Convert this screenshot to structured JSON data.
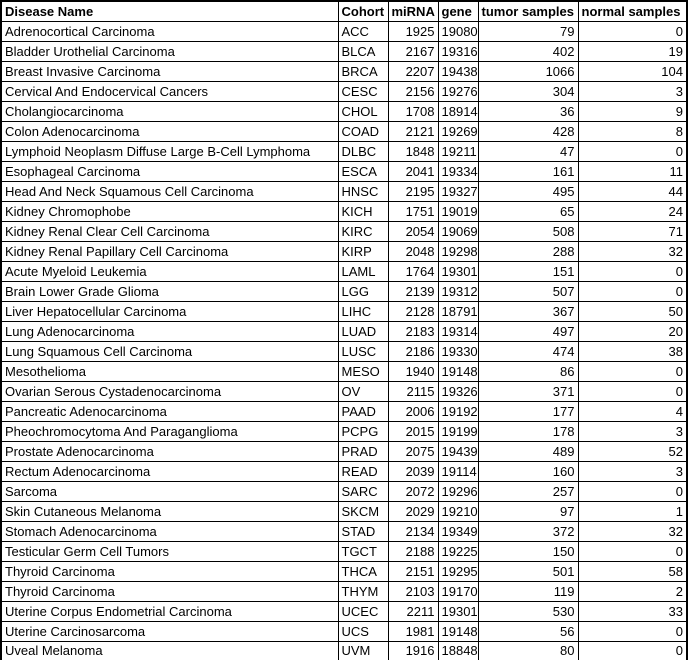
{
  "colors": {
    "background": "#ffffff",
    "gridline": "#000000",
    "text": "#000000"
  },
  "table": {
    "columns": [
      {
        "key": "disease",
        "label": "Disease Name",
        "align": "left"
      },
      {
        "key": "cohort",
        "label": "Cohort",
        "align": "left"
      },
      {
        "key": "mirna",
        "label": "miRNA",
        "align": "right"
      },
      {
        "key": "gene",
        "label": "gene",
        "align": "right"
      },
      {
        "key": "tumor",
        "label": "tumor samples",
        "align": "right"
      },
      {
        "key": "normal",
        "label": "normal samples",
        "align": "right"
      }
    ],
    "rows": [
      [
        "Adrenocortical Carcinoma",
        "ACC",
        1925,
        19080,
        79,
        0
      ],
      [
        "Bladder Urothelial Carcinoma",
        "BLCA",
        2167,
        19316,
        402,
        19
      ],
      [
        "Breast Invasive Carcinoma",
        "BRCA",
        2207,
        19438,
        1066,
        104
      ],
      [
        "Cervical And Endocervical Cancers",
        "CESC",
        2156,
        19276,
        304,
        3
      ],
      [
        "Cholangiocarcinoma",
        "CHOL",
        1708,
        18914,
        36,
        9
      ],
      [
        "Colon Adenocarcinoma",
        "COAD",
        2121,
        19269,
        428,
        8
      ],
      [
        "Lymphoid Neoplasm Diffuse Large B-Cell Lymphoma",
        "DLBC",
        1848,
        19211,
        47,
        0
      ],
      [
        "Esophageal Carcinoma",
        "ESCA",
        2041,
        19334,
        161,
        11
      ],
      [
        "Head And Neck Squamous Cell Carcinoma",
        "HNSC",
        2195,
        19327,
        495,
        44
      ],
      [
        "Kidney Chromophobe",
        "KICH",
        1751,
        19019,
        65,
        24
      ],
      [
        "Kidney Renal Clear Cell Carcinoma",
        "KIRC",
        2054,
        19069,
        508,
        71
      ],
      [
        "Kidney Renal Papillary Cell Carcinoma",
        "KIRP",
        2048,
        19298,
        288,
        32
      ],
      [
        "Acute Myeloid Leukemia",
        "LAML",
        1764,
        19301,
        151,
        0
      ],
      [
        "Brain Lower Grade Glioma",
        "LGG",
        2139,
        19312,
        507,
        0
      ],
      [
        "Liver Hepatocellular Carcinoma",
        "LIHC",
        2128,
        18791,
        367,
        50
      ],
      [
        "Lung Adenocarcinoma",
        "LUAD",
        2183,
        19314,
        497,
        20
      ],
      [
        "Lung Squamous Cell Carcinoma",
        "LUSC",
        2186,
        19330,
        474,
        38
      ],
      [
        "Mesothelioma",
        "MESO",
        1940,
        19148,
        86,
        0
      ],
      [
        "Ovarian Serous Cystadenocarcinoma",
        "OV",
        2115,
        19326,
        371,
        0
      ],
      [
        "Pancreatic Adenocarcinoma",
        "PAAD",
        2006,
        19192,
        177,
        4
      ],
      [
        "Pheochromocytoma And Paraganglioma",
        "PCPG",
        2015,
        19199,
        178,
        3
      ],
      [
        "Prostate Adenocarcinoma",
        "PRAD",
        2075,
        19439,
        489,
        52
      ],
      [
        "Rectum Adenocarcinoma",
        "READ",
        2039,
        19114,
        160,
        3
      ],
      [
        "Sarcoma",
        "SARC",
        2072,
        19296,
        257,
        0
      ],
      [
        "Skin Cutaneous Melanoma",
        "SKCM",
        2029,
        19210,
        97,
        1
      ],
      [
        "Stomach Adenocarcinoma",
        "STAD",
        2134,
        19349,
        372,
        32
      ],
      [
        "Testicular Germ Cell Tumors",
        "TGCT",
        2188,
        19225,
        150,
        0
      ],
      [
        "Thyroid Carcinoma",
        "THCA",
        2151,
        19295,
        501,
        58
      ],
      [
        "Thyroid Carcinoma",
        "THYM",
        2103,
        19170,
        119,
        2
      ],
      [
        "Uterine Corpus Endometrial Carcinoma",
        "UCEC",
        2211,
        19301,
        530,
        33
      ],
      [
        "Uterine Carcinosarcoma",
        "UCS",
        1981,
        19148,
        56,
        0
      ],
      [
        "Uveal Melanoma",
        "UVM",
        1916,
        18848,
        80,
        0
      ]
    ]
  }
}
